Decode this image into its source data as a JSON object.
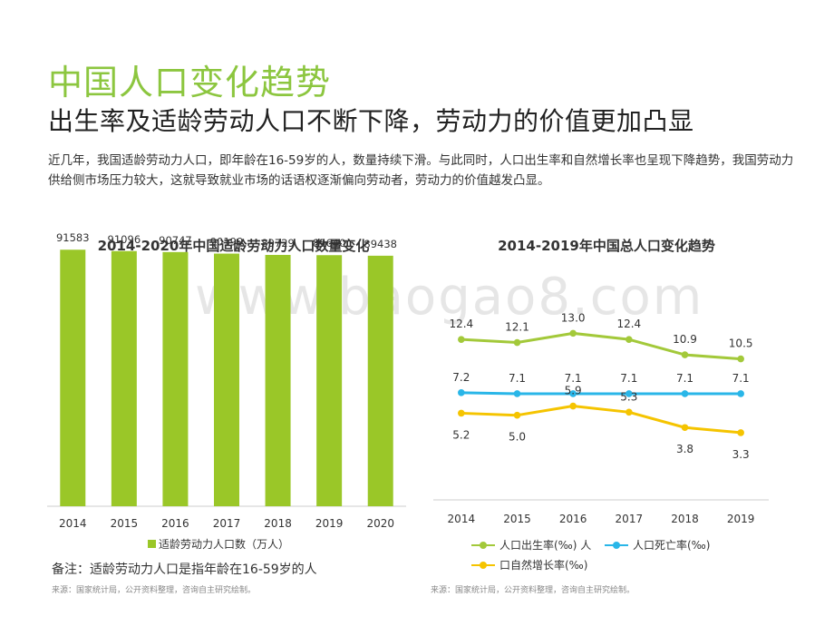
{
  "title": "中国人口变化趋势",
  "subtitle": "出生率及适龄劳动人口不断下降，劳动力的价值更加凸显",
  "intro": "近几年，我国适龄劳动力人口，即年龄在16-59岁的人，数量持续下滑。与此同时，人口出生率和自然增长率也呈现下降趋势，我国劳动力供给侧市场压力较大，这就导致就业市场的话语权逐渐偏向劳动者，劳动力的价值越发凸显。",
  "watermark": "www.baogao8.com",
  "note": "备注：适龄劳动力人口是指年龄在16-59岁的人",
  "source": "来源：国家统计局，公开资料整理，咨询自主研究绘制。",
  "chart_data": [
    {
      "type": "bar",
      "title": "2014-2020年中国适龄劳动力人口数量变化",
      "categories": [
        "2014",
        "2015",
        "2016",
        "2017",
        "2018",
        "2019",
        "2020"
      ],
      "series": [
        {
          "name": "适龄劳动力人口数（万人）",
          "values": [
            91583,
            91096,
            90747,
            90199,
            89729,
            89640,
            89438
          ],
          "color": "#9ac728"
        }
      ],
      "ylim": [
        0,
        103000
      ],
      "grid": false,
      "legend": "bottom"
    },
    {
      "type": "line",
      "title": "2014-2019年中国总人口变化趋势",
      "categories": [
        "2014",
        "2015",
        "2016",
        "2017",
        "2018",
        "2019"
      ],
      "series": [
        {
          "name": "人口出生率(‰) 人",
          "values": [
            12.4,
            12.1,
            13.0,
            12.4,
            10.9,
            10.5
          ],
          "color": "#a3c93a"
        },
        {
          "name": "人口死亡率(‰)",
          "values": [
            7.2,
            7.1,
            7.1,
            7.1,
            7.1,
            7.1
          ],
          "color": "#29b6e8"
        },
        {
          "name": "口自然增长率(‰)",
          "values": [
            5.2,
            5.0,
            5.9,
            5.3,
            3.8,
            3.3
          ],
          "color": "#f5c400"
        }
      ],
      "grid": false,
      "legend": "bottom"
    }
  ]
}
